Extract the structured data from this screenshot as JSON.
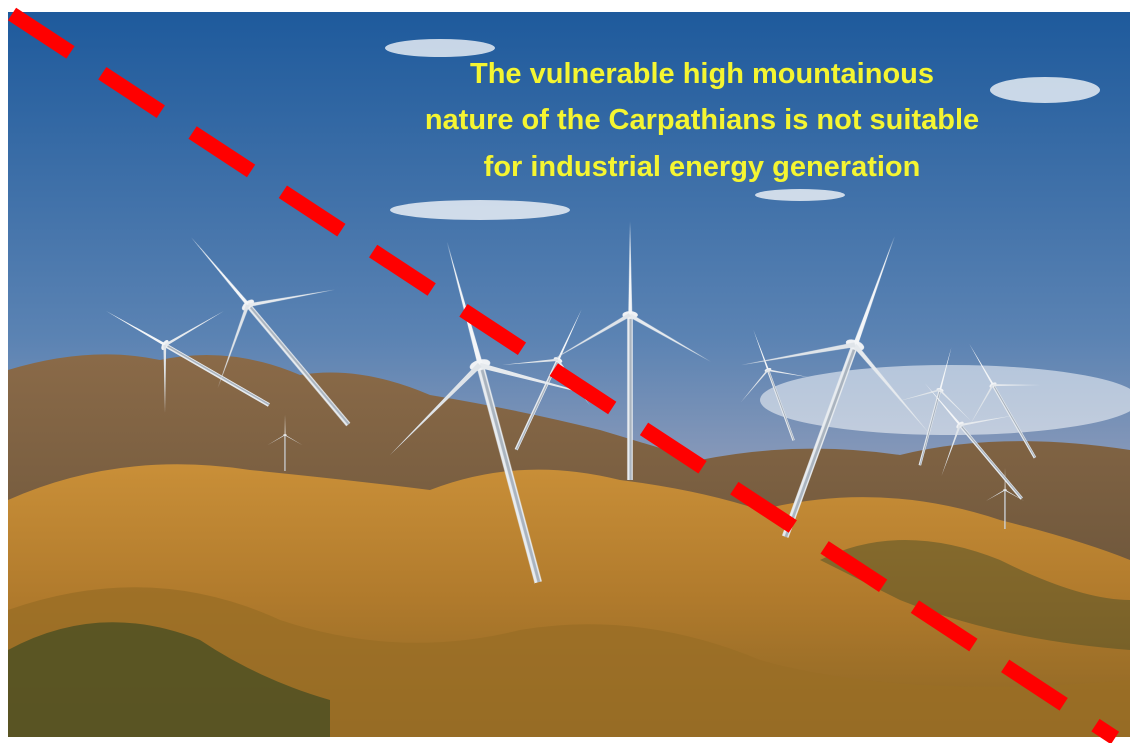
{
  "caption": {
    "lines": [
      "The vulnerable high mountainous",
      "nature of the Carpathians is not suitable",
      "for industrial energy generation"
    ]
  }
}
